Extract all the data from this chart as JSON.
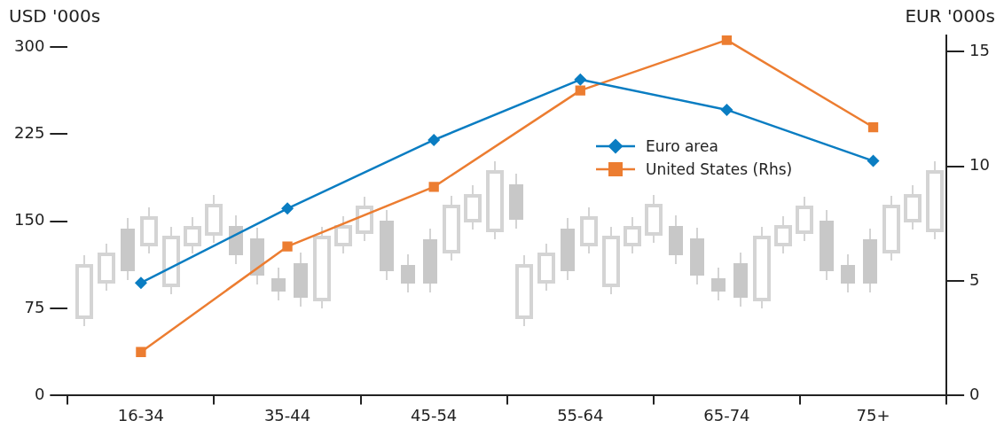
{
  "chart_data": {
    "type": "line",
    "ylabel": "USD '000s",
    "y2label": "EUR '000s",
    "categories": [
      "16-34",
      "35-44",
      "45-54",
      "55-64",
      "65-74",
      "75+"
    ],
    "series": [
      {
        "name": "Euro area",
        "color": "#0a7dc2",
        "marker": "diamond",
        "values": [
          97,
          161,
          220,
          272,
          246,
          202
        ]
      },
      {
        "name": "United States (Rhs)",
        "color": "#ec7d31",
        "marker": "square",
        "axis": "y2",
        "values": [
          1.9,
          6.5,
          9.1,
          13.3,
          15.5,
          11.7
        ]
      }
    ],
    "ylim": [
      0,
      310
    ],
    "yticks": [
      0,
      75,
      150,
      225,
      300
    ],
    "y2lim": [
      0,
      15.7
    ],
    "y2ticks": [
      0,
      5,
      10,
      15
    ],
    "legend": "top right",
    "grid": false
  }
}
